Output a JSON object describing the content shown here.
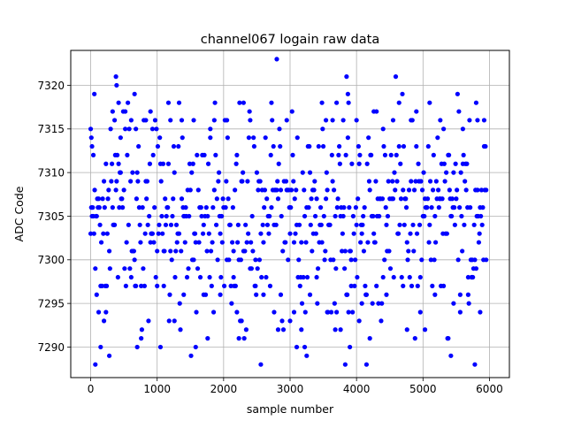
{
  "chart_data": {
    "type": "scatter",
    "title": "channel067 logain raw data",
    "xlabel": "sample number",
    "ylabel": "ADC Code",
    "xlim": [
      -300,
      6300
    ],
    "ylim": [
      7286.5,
      7324
    ],
    "xticks": [
      0,
      1000,
      2000,
      3000,
      4000,
      5000,
      6000
    ],
    "xtick_labels": [
      "0",
      "1000",
      "2000",
      "3000",
      "4000",
      "5000",
      "6000"
    ],
    "yticks": [
      7290,
      7295,
      7300,
      7305,
      7310,
      7315,
      7320
    ],
    "ytick_labels": [
      "7290",
      "7295",
      "7300",
      "7305",
      "7310",
      "7315",
      "7320"
    ],
    "grid": true,
    "marker": "circle",
    "color": "#0000ff",
    "series": [
      {
        "points": [
          [
            0,
            7315
          ],
          [
            10,
            7314
          ],
          [
            20,
            7313
          ],
          [
            40,
            7312
          ],
          [
            55,
            7319
          ],
          [
            70,
            7288
          ],
          [
            90,
            7296
          ],
          [
            120,
            7294
          ],
          [
            150,
            7290
          ],
          [
            200,
            7293
          ],
          [
            230,
            7294
          ],
          [
            280,
            7289
          ],
          [
            330,
            7317
          ],
          [
            360,
            7316
          ],
          [
            380,
            7321
          ],
          [
            390,
            7320
          ],
          [
            420,
            7318
          ],
          [
            450,
            7314
          ],
          [
            520,
            7317
          ],
          [
            610,
            7298
          ],
          [
            660,
            7319
          ],
          [
            680,
            7315
          ],
          [
            700,
            7290
          ],
          [
            760,
            7291
          ],
          [
            830,
            7316
          ],
          [
            900,
            7317
          ],
          [
            930,
            7315
          ],
          [
            1000,
            7297
          ],
          [
            1050,
            7290
          ],
          [
            1100,
            7297
          ],
          [
            1170,
            7318
          ],
          [
            1200,
            7316
          ],
          [
            1260,
            7293
          ],
          [
            1330,
            7318
          ],
          [
            1370,
            7316
          ],
          [
            1400,
            7296
          ],
          [
            1550,
            7316
          ],
          [
            1580,
            7290
          ],
          [
            1700,
            7296
          ],
          [
            1760,
            7291
          ],
          [
            1800,
            7315
          ],
          [
            1860,
            7316
          ],
          [
            1950,
            7296
          ],
          [
            2050,
            7316
          ],
          [
            2150,
            7298
          ],
          [
            2200,
            7294
          ],
          [
            2230,
            7291
          ],
          [
            2270,
            7293
          ],
          [
            2300,
            7318
          ],
          [
            2400,
            7316
          ],
          [
            2480,
            7297
          ],
          [
            2560,
            7288
          ],
          [
            2600,
            7296
          ],
          [
            2720,
            7318
          ],
          [
            2760,
            7294
          ],
          [
            2800,
            7323
          ],
          [
            2820,
            7292
          ],
          [
            2860,
            7296
          ],
          [
            2950,
            7316
          ],
          [
            3000,
            7293
          ],
          [
            3060,
            7294
          ],
          [
            3100,
            7290
          ],
          [
            3170,
            7292
          ],
          [
            3220,
            7290
          ],
          [
            3250,
            7289
          ],
          [
            3300,
            7296
          ],
          [
            3400,
            7298
          ],
          [
            3480,
            7318
          ],
          [
            3540,
            7316
          ],
          [
            3560,
            7294
          ],
          [
            3640,
            7316
          ],
          [
            3680,
            7292
          ],
          [
            3700,
            7318
          ],
          [
            3760,
            7292
          ],
          [
            3800,
            7316
          ],
          [
            3830,
            7288
          ],
          [
            3850,
            7321
          ],
          [
            3870,
            7319
          ],
          [
            3880,
            7318
          ],
          [
            3900,
            7290
          ],
          [
            3920,
            7297
          ],
          [
            4000,
            7316
          ],
          [
            4040,
            7293
          ],
          [
            4080,
            7295
          ],
          [
            4150,
            7288
          ],
          [
            4200,
            7291
          ],
          [
            4260,
            7317
          ],
          [
            4300,
            7317
          ],
          [
            4400,
            7315
          ],
          [
            4450,
            7296
          ],
          [
            4550,
            7316
          ],
          [
            4640,
            7318
          ],
          [
            4700,
            7297
          ],
          [
            4760,
            7292
          ],
          [
            4820,
            7316
          ],
          [
            4900,
            7317
          ],
          [
            4960,
            7294
          ],
          [
            5030,
            7292
          ],
          [
            5100,
            7318
          ],
          [
            5180,
            7296
          ],
          [
            5260,
            7316
          ],
          [
            5310,
            7297
          ],
          [
            5380,
            7291
          ],
          [
            5420,
            7289
          ],
          [
            5460,
            7295
          ],
          [
            5560,
            7294
          ],
          [
            5600,
            7315
          ],
          [
            5680,
            7296
          ],
          [
            5740,
            7298
          ],
          [
            5780,
            7288
          ],
          [
            5800,
            7318
          ],
          [
            5820,
            7316
          ],
          [
            5860,
            7294
          ],
          [
            5920,
            7316
          ],
          [
            5950,
            7300
          ]
        ],
        "band": {
          "x_start": 0,
          "x_end": 5950,
          "x_step": 10,
          "center": 7305,
          "spread": 5.5,
          "seed": 67
        }
      }
    ]
  }
}
